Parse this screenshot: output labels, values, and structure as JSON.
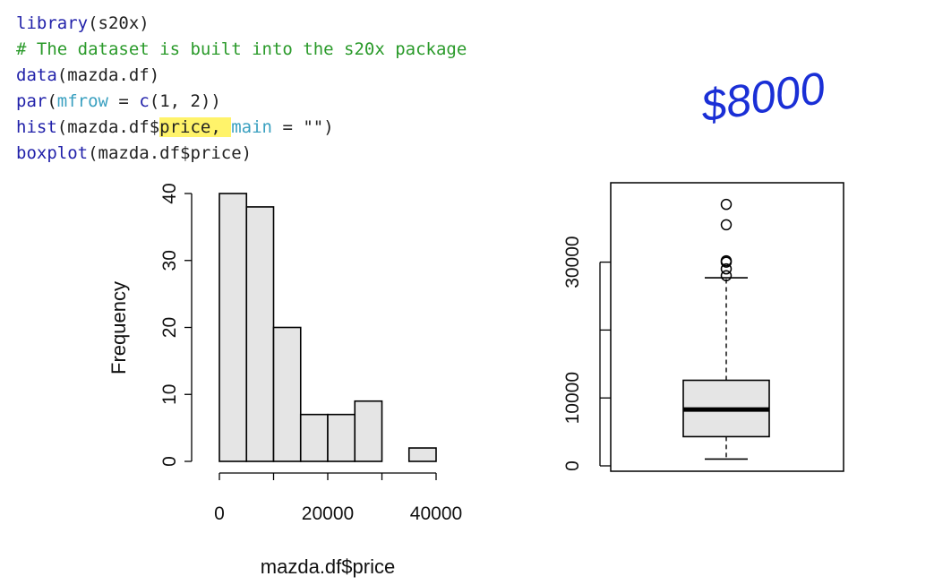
{
  "code": {
    "line1": {
      "fn": "library",
      "rest": "(s20x)"
    },
    "line2": {
      "comment": "# The dataset is built into the s20x package"
    },
    "line3": {
      "fn": "data",
      "rest": "(mazda.df)"
    },
    "line4": {
      "fn1": "par",
      "p1": "(",
      "arg": "mfrow",
      "p2": " = ",
      "fn2": "c",
      "p3": "(1, 2))"
    },
    "line5": {
      "fn": "hist",
      "pre": "(mazda.df$",
      "hl": "price, ",
      "arg": "main",
      "post": " = \"\")"
    },
    "line6": {
      "fn": "boxplot",
      "rest": "(mazda.df$price)"
    }
  },
  "annotation": {
    "text": "$8000",
    "color": "#1a2fd6"
  },
  "chart_data": [
    {
      "type": "histogram",
      "title": "",
      "xlabel": "mazda.df$price",
      "ylabel": "Frequency",
      "bin_edges": [
        0,
        5000,
        10000,
        15000,
        20000,
        25000,
        30000,
        35000,
        40000
      ],
      "counts": [
        40,
        38,
        20,
        7,
        7,
        9,
        0,
        2
      ],
      "xlim": [
        0,
        40000
      ],
      "ylim": [
        0,
        40
      ],
      "x_ticks": [
        0,
        20000,
        40000
      ],
      "x_tick_labels": [
        "0",
        "20000",
        "40000"
      ],
      "y_ticks": [
        0,
        10,
        20,
        30,
        40
      ],
      "y_tick_labels": [
        "0",
        "10",
        "20",
        "30",
        "40"
      ],
      "bar_fill": "#e5e5e5"
    },
    {
      "type": "boxplot",
      "title": "",
      "min": 1000,
      "q1": 4300,
      "median": 8300,
      "q3": 12600,
      "whisker_high": 27700,
      "outliers": [
        28000,
        29000,
        30000,
        30200,
        35500,
        38500
      ],
      "ylim": [
        0,
        40000
      ],
      "y_ticks": [
        0,
        10000,
        20000,
        30000
      ],
      "y_tick_labels": [
        "0",
        "10000",
        "",
        "30000"
      ],
      "box_fill": "#e5e5e5"
    }
  ]
}
